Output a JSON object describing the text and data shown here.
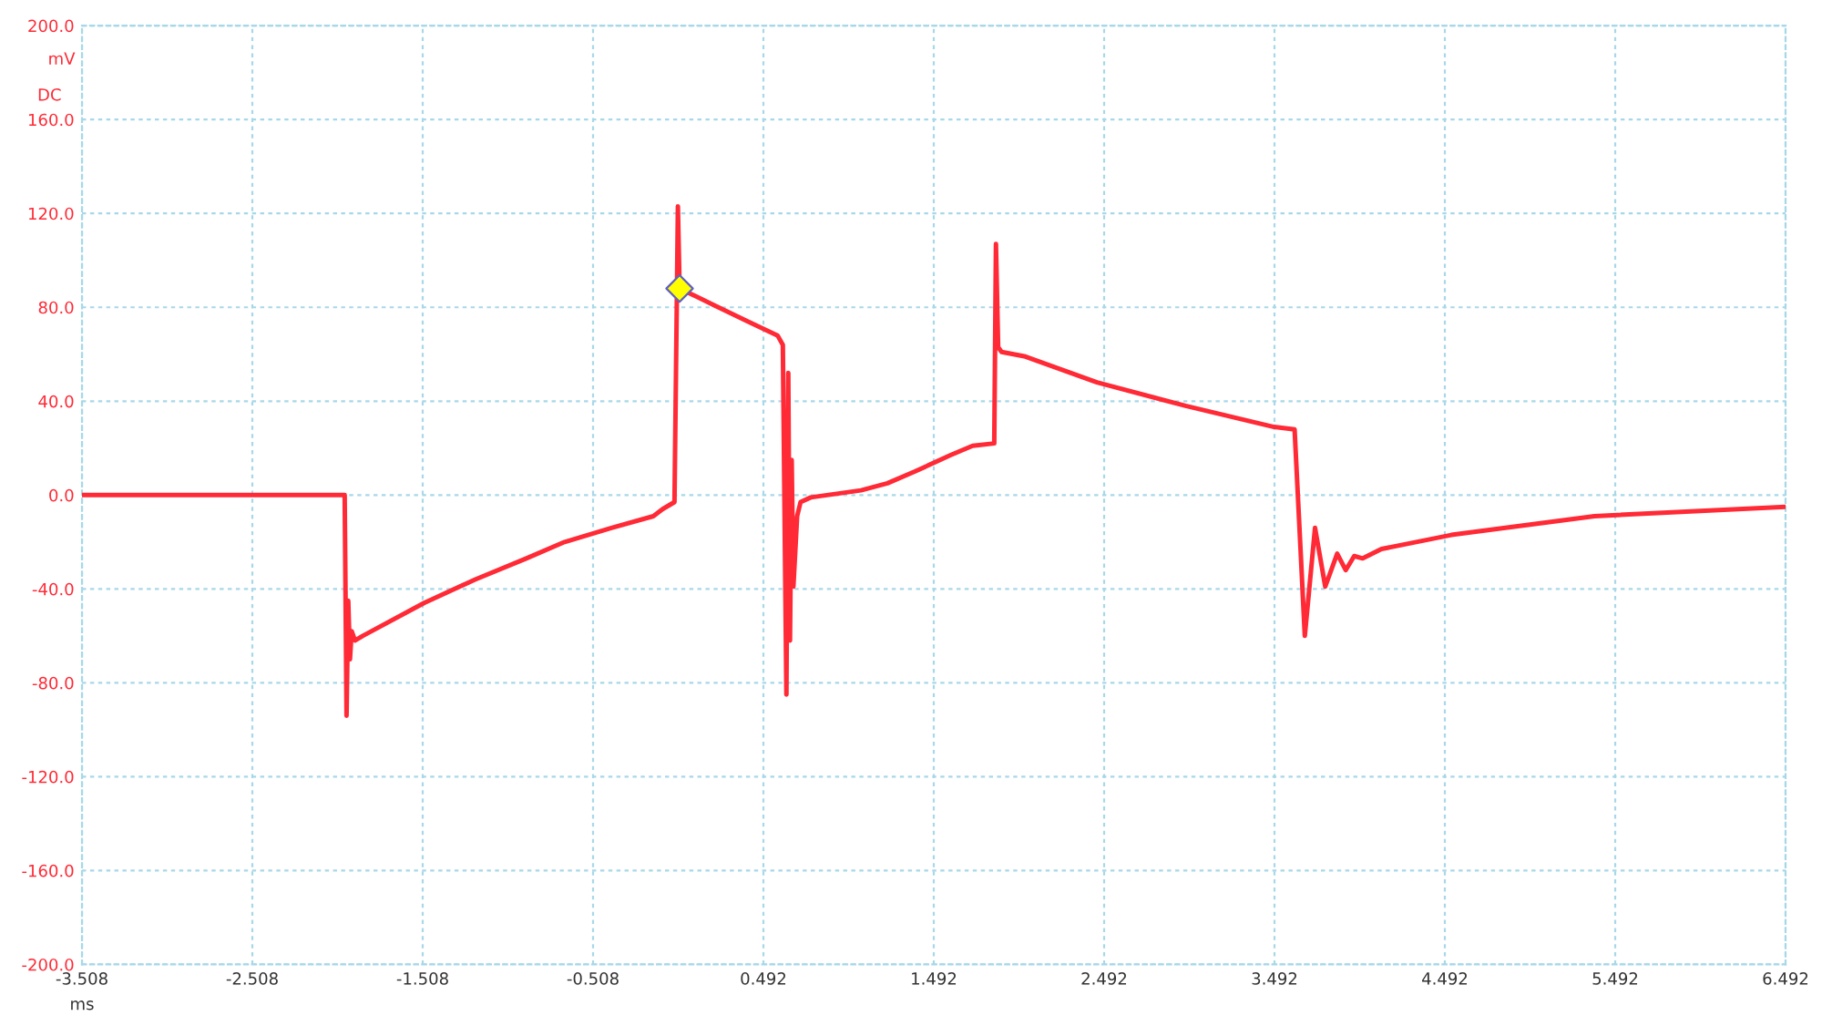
{
  "chart_data": {
    "type": "line",
    "xlabel": "ms",
    "ylabel": "mV",
    "annotations": [
      "DC"
    ],
    "xlim": [
      -3.508,
      6.492
    ],
    "ylim": [
      -200,
      200
    ],
    "xticks": [
      -3.508,
      -2.508,
      -1.508,
      -0.508,
      0.492,
      1.492,
      2.492,
      3.492,
      4.492,
      5.492,
      6.492
    ],
    "yticks": [
      {
        "value": -200,
        "label": "-200.0"
      },
      {
        "value": -160,
        "label": "-160.0"
      },
      {
        "value": -120,
        "label": "-120.0"
      },
      {
        "value": -80,
        "label": "-80.0"
      },
      {
        "value": -40,
        "label": "-40.0"
      },
      {
        "value": 0,
        "label": "0.0"
      },
      {
        "value": 40,
        "label": "40.0"
      },
      {
        "value": 80,
        "label": "80.0"
      },
      {
        "value": 120,
        "label": "120.0"
      },
      {
        "value": 160,
        "label": "160.0"
      },
      {
        "value": 200,
        "label": "200.0"
      }
    ],
    "grid": true,
    "line_style": "solid",
    "series": [
      {
        "color": "#ff2a36",
        "marker": "none",
        "x": [
          -3.508,
          -1.966,
          -1.955,
          -1.945,
          -1.935,
          -1.925,
          -1.905,
          -1.86,
          -1.5,
          -1.2,
          -0.9,
          -0.675,
          -0.4,
          -0.154,
          -0.1,
          -0.03,
          -0.01,
          0.0,
          0.2,
          0.4,
          0.575,
          0.606,
          0.627,
          0.638,
          0.648,
          0.658,
          0.668,
          0.69,
          0.71,
          0.77,
          1.065,
          1.22,
          1.38,
          1.59,
          1.72,
          1.847,
          1.857,
          1.87,
          1.89,
          2.03,
          2.45,
          2.97,
          3.49,
          3.61,
          3.67,
          3.73,
          3.79,
          3.86,
          3.91,
          3.96,
          4.01,
          4.12,
          4.53,
          5.37,
          6.492
        ],
        "values": [
          0,
          0,
          -94,
          -45,
          -70,
          -58,
          -62,
          -60,
          -46,
          -36,
          -27,
          -20,
          -14,
          -9,
          -6,
          -3,
          123,
          88,
          81,
          74,
          68,
          64,
          -85,
          52,
          -62,
          15,
          -39,
          -9,
          -3,
          -1,
          2,
          5,
          10,
          17,
          21,
          22,
          107,
          63,
          61,
          59,
          48,
          38,
          29,
          28,
          -60,
          -14,
          -39,
          -25,
          -32,
          -26,
          -27,
          -23,
          -17,
          -9,
          -5
        ]
      },
      {
        "type": "scatter",
        "color": "#ffff00",
        "marker": "diamond",
        "x": [
          0.0
        ],
        "values": [
          88
        ]
      }
    ]
  }
}
